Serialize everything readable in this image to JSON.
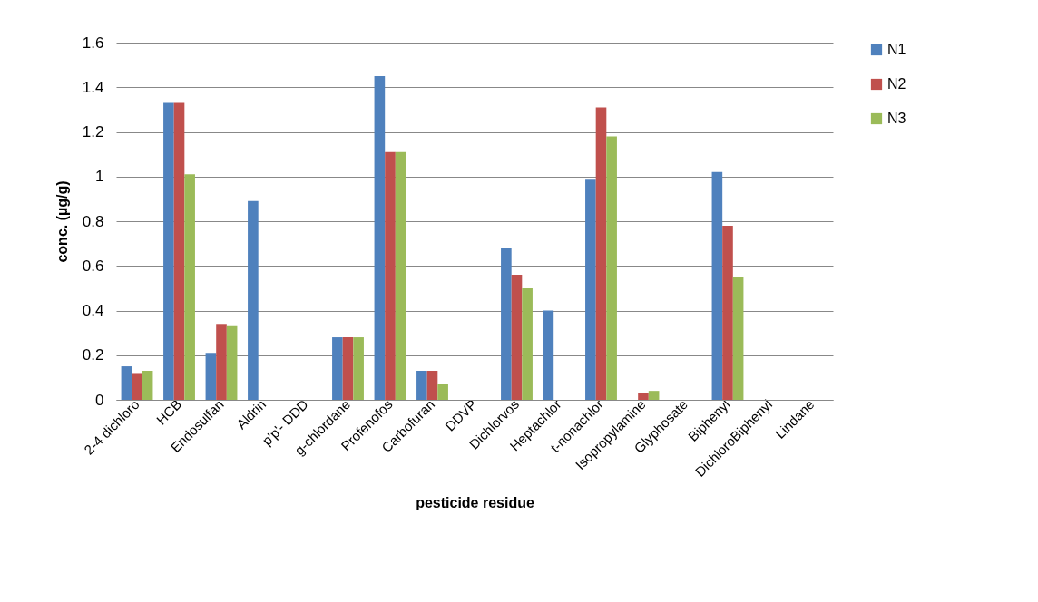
{
  "chart_data": {
    "type": "bar",
    "xlabel": "pesticide residue",
    "ylabel": "conc. (µg/g)",
    "categories": [
      "2-4 dichloro",
      "HCB",
      "Endosulfan",
      "Aldrin",
      "p'p'- DDD",
      "g-chlordane",
      "Profenofos",
      "Carbofuran",
      "DDVP",
      "Dichlorvos",
      "Heptachlor",
      "t-nonachlor",
      "Isopropylamine",
      "Glyphosate",
      "Biphenyl",
      "DichloroBiphenyl",
      "Lindane"
    ],
    "series": [
      {
        "name": "N1",
        "color": "#4f81bd",
        "values": [
          0.15,
          1.33,
          0.21,
          0.89,
          0,
          0.28,
          1.45,
          0.13,
          0,
          0.68,
          0.4,
          0.99,
          0,
          0,
          1.02,
          0,
          0
        ]
      },
      {
        "name": "N2",
        "color": "#c0504d",
        "values": [
          0.12,
          1.33,
          0.34,
          0,
          0,
          0.28,
          1.11,
          0.13,
          0,
          0.56,
          0,
          1.31,
          0.03,
          0,
          0.78,
          0,
          0
        ]
      },
      {
        "name": "N3",
        "color": "#9bbb59",
        "values": [
          0.13,
          1.01,
          0.33,
          0,
          0,
          0.28,
          1.11,
          0.07,
          0,
          0.5,
          0,
          1.18,
          0.04,
          0,
          0.55,
          0,
          0
        ]
      }
    ],
    "ylim": [
      0,
      1.6
    ],
    "yticks": [
      0,
      0.2,
      0.4,
      0.6,
      0.8,
      1,
      1.2,
      1.4,
      1.6
    ],
    "grid": "y",
    "legend": "right"
  }
}
